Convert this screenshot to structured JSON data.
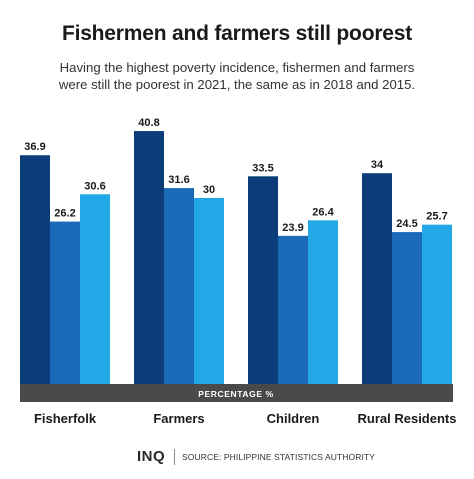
{
  "header": {
    "title": "Fishermen and farmers still poorest",
    "subtitle_line1": "Having the highest poverty incidence, fishermen and farmers",
    "subtitle_line2": "were still the poorest in 2021, the same as in 2018 and 2015."
  },
  "footer": {
    "logo_text": "INQ",
    "source": "SOURCE: PHILIPPINE STATISTICS AUTHORITY"
  },
  "chart_data": {
    "type": "bar",
    "title": "Fishermen and farmers still poorest",
    "xlabel": "PERCENTAGE %",
    "ylabel": "",
    "ylim": [
      0,
      45
    ],
    "grid": false,
    "legend": "none",
    "categories": [
      "Fisherfolk",
      "Farmers",
      "Children",
      "Rural Residents"
    ],
    "series": [
      {
        "values": [
          36.9,
          40.8,
          33.5,
          34
        ],
        "color": "#0c3d7a"
      },
      {
        "values": [
          26.2,
          31.6,
          23.9,
          24.5
        ],
        "color": "#1b6ab8"
      },
      {
        "values": [
          30.6,
          30,
          26.4,
          25.7
        ],
        "color": "#22a8e6"
      }
    ],
    "axis_band_color": "#4a4a4a"
  }
}
